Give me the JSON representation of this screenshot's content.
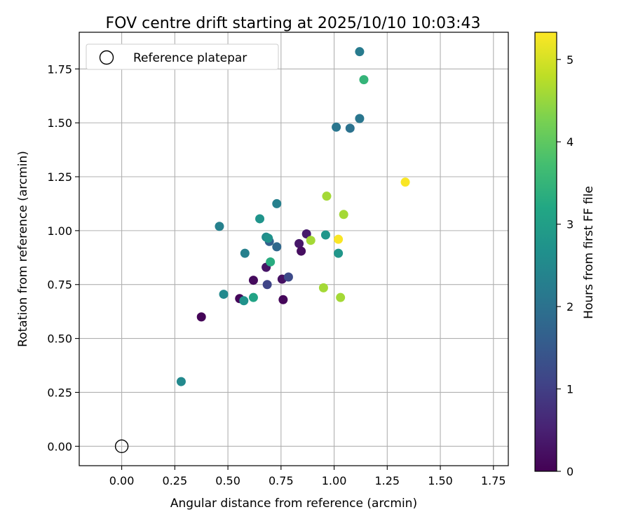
{
  "chart_data": {
    "type": "scatter",
    "title": "FOV centre drift starting at 2025/10/10 10:03:43",
    "xlabel": "Angular distance from reference (arcmin)",
    "ylabel": "Rotation from reference (arcmin)",
    "xlim": [
      -0.2,
      1.82
    ],
    "ylim": [
      -0.09,
      1.92
    ],
    "xticks": [
      0.0,
      0.25,
      0.5,
      0.75,
      1.0,
      1.25,
      1.5,
      1.75
    ],
    "yticks": [
      0.0,
      0.25,
      0.5,
      0.75,
      1.0,
      1.25,
      1.5,
      1.75
    ],
    "xtick_labels": [
      "0.00",
      "0.25",
      "0.50",
      "0.75",
      "1.00",
      "1.25",
      "1.50",
      "1.75"
    ],
    "ytick_labels": [
      "0.00",
      "0.25",
      "0.50",
      "0.75",
      "1.00",
      "1.25",
      "1.50",
      "1.75"
    ],
    "grid": true,
    "legend": {
      "position": "top-left",
      "entries": [
        "Reference platepar"
      ]
    },
    "reference_point": {
      "x": 0.0,
      "y": 0.0,
      "label": "Reference platepar"
    },
    "colorbar": {
      "label": "Hours from first FF file",
      "colormap": "viridis",
      "min": 0,
      "max": 5.33,
      "ticks": [
        0,
        1,
        2,
        3,
        4,
        5
      ],
      "tick_labels": [
        "0",
        "1",
        "2",
        "3",
        "4",
        "5"
      ]
    },
    "points": [
      {
        "x": 0.375,
        "y": 0.6,
        "t": 0.05
      },
      {
        "x": 0.555,
        "y": 0.685,
        "t": 0.1
      },
      {
        "x": 0.62,
        "y": 0.77,
        "t": 0.15
      },
      {
        "x": 0.68,
        "y": 0.83,
        "t": 0.3
      },
      {
        "x": 0.755,
        "y": 0.775,
        "t": 0.25
      },
      {
        "x": 0.76,
        "y": 0.68,
        "t": 0.1
      },
      {
        "x": 0.835,
        "y": 0.94,
        "t": 0.35
      },
      {
        "x": 0.845,
        "y": 0.905,
        "t": 0.2
      },
      {
        "x": 0.87,
        "y": 0.985,
        "t": 0.4
      },
      {
        "x": 0.685,
        "y": 0.75,
        "t": 1.1
      },
      {
        "x": 0.785,
        "y": 0.785,
        "t": 1.2
      },
      {
        "x": 0.695,
        "y": 0.95,
        "t": 1.65
      },
      {
        "x": 0.73,
        "y": 0.925,
        "t": 1.8
      },
      {
        "x": 0.58,
        "y": 0.895,
        "t": 2.3
      },
      {
        "x": 0.46,
        "y": 1.02,
        "t": 2.3
      },
      {
        "x": 0.48,
        "y": 0.705,
        "t": 2.5
      },
      {
        "x": 0.28,
        "y": 0.3,
        "t": 2.5
      },
      {
        "x": 0.73,
        "y": 1.125,
        "t": 2.3
      },
      {
        "x": 1.01,
        "y": 1.48,
        "t": 2.1
      },
      {
        "x": 1.075,
        "y": 1.475,
        "t": 2.0
      },
      {
        "x": 1.12,
        "y": 1.52,
        "t": 2.1
      },
      {
        "x": 1.12,
        "y": 1.83,
        "t": 2.2
      },
      {
        "x": 0.68,
        "y": 0.97,
        "t": 2.55
      },
      {
        "x": 0.575,
        "y": 0.675,
        "t": 2.7
      },
      {
        "x": 0.65,
        "y": 1.055,
        "t": 2.75
      },
      {
        "x": 0.69,
        "y": 0.965,
        "t": 2.7
      },
      {
        "x": 0.96,
        "y": 0.98,
        "t": 2.8
      },
      {
        "x": 1.02,
        "y": 0.895,
        "t": 2.8
      },
      {
        "x": 0.62,
        "y": 0.69,
        "t": 3.1
      },
      {
        "x": 0.7,
        "y": 0.855,
        "t": 3.3
      },
      {
        "x": 1.14,
        "y": 1.7,
        "t": 3.5
      },
      {
        "x": 0.89,
        "y": 0.955,
        "t": 4.6
      },
      {
        "x": 0.95,
        "y": 0.735,
        "t": 4.6
      },
      {
        "x": 0.965,
        "y": 1.16,
        "t": 4.6
      },
      {
        "x": 1.03,
        "y": 0.69,
        "t": 4.6
      },
      {
        "x": 1.045,
        "y": 1.075,
        "t": 4.6
      },
      {
        "x": 1.02,
        "y": 0.96,
        "t": 5.3
      },
      {
        "x": 1.335,
        "y": 1.225,
        "t": 5.3
      }
    ]
  }
}
